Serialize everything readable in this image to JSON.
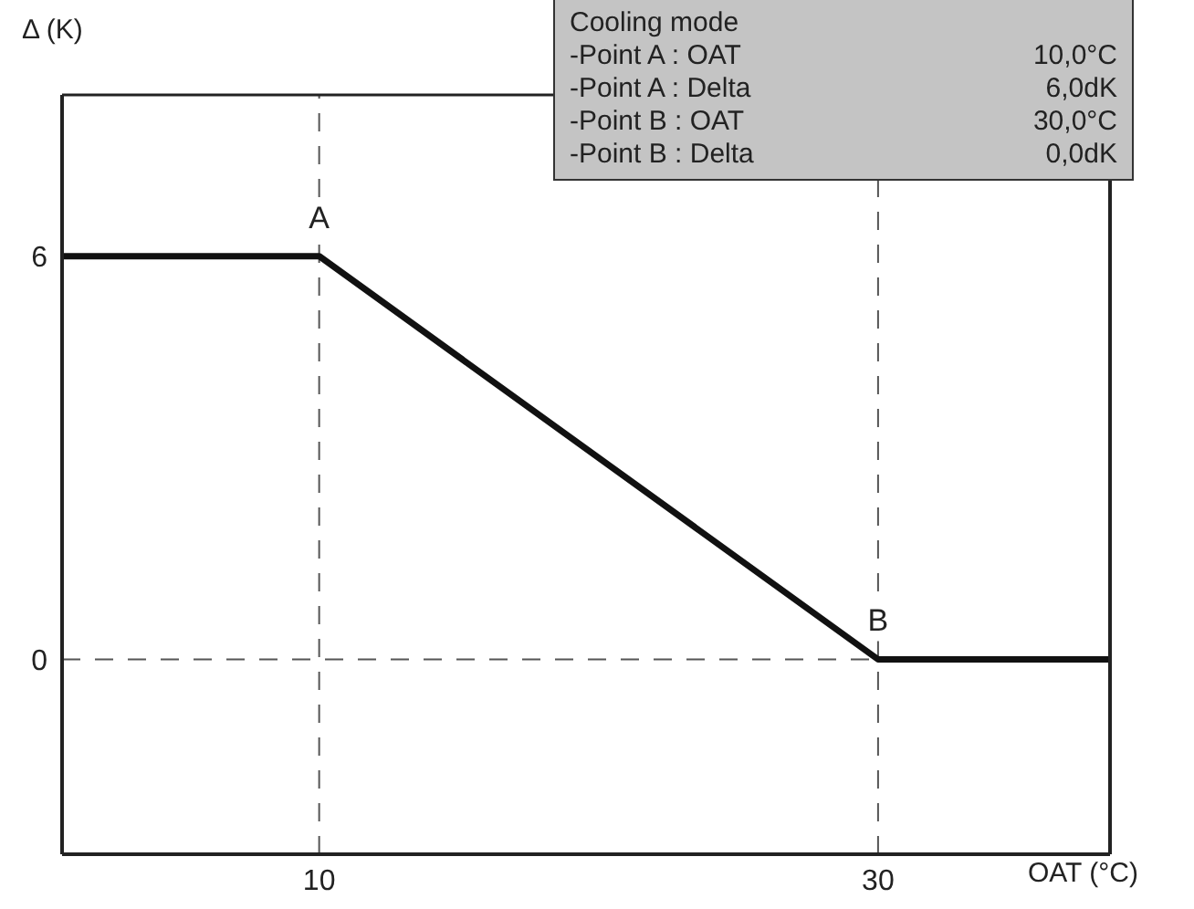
{
  "chart_data": {
    "type": "line",
    "xlabel": "OAT (°C)",
    "ylabel": "Δ (K)",
    "x": [
      0.8,
      10,
      30,
      38.3
    ],
    "series": [
      {
        "color": "#111111",
        "values": [
          6,
          6,
          0,
          0
        ]
      }
    ],
    "xlim": [
      0.8,
      38.3
    ],
    "ylim": [
      -2.9,
      8.4
    ],
    "xticks": [
      10,
      30
    ],
    "yticks": [
      0,
      6
    ],
    "grid": false,
    "legend": false,
    "marker": "none",
    "line_style": "solid",
    "ref_lines": [
      {
        "axis": "x",
        "value": 10,
        "color": "#555555",
        "line_style": "dashed"
      },
      {
        "axis": "x",
        "value": 30,
        "color": "#555555",
        "line_style": "dashed"
      },
      {
        "axis": "y",
        "value": 0,
        "color": "#555555",
        "line_style": "dashed"
      }
    ],
    "annotations": [
      {
        "text": "A",
        "x": 10,
        "y": 6
      },
      {
        "text": "B",
        "x": 30,
        "y": 0
      },
      "Cooling mode",
      "-Point A : OAT",
      "10,0°C",
      "-Point A : Delta",
      "6,0dK",
      "-Point B : OAT",
      "30,0°C",
      "-Point B : Delta",
      "0,0dK"
    ]
  }
}
